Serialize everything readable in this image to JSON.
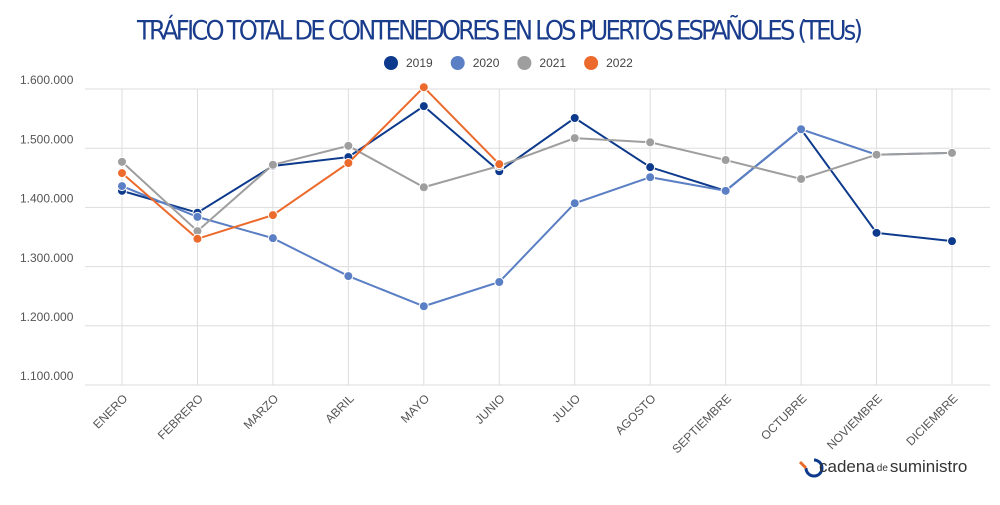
{
  "chart_data": {
    "type": "line",
    "title": "TRÁFICO TOTAL DE CONTENEDORES EN LOS PUERTOS ESPAÑOLES (TEUs)",
    "categories": [
      "ENERO",
      "FEBRERO",
      "MARZO",
      "ABRIL",
      "MAYO",
      "JUNIO",
      "JULIO",
      "AGOSTO",
      "SEPTIEMBRE",
      "OCTUBRE",
      "NOVIEMBRE",
      "DICIEMBRE"
    ],
    "series": [
      {
        "name": "2019",
        "color": "#0d3a8c",
        "values": [
          1428000,
          1391000,
          1470000,
          1485000,
          1571000,
          1461000,
          1551000,
          1468000,
          1428000,
          1532000,
          1357000,
          1343000
        ]
      },
      {
        "name": "2020",
        "color": "#5b7fc4",
        "values": [
          1436000,
          1384000,
          1348000,
          1284000,
          1233000,
          1274000,
          1407000,
          1451000,
          1428000,
          1532000,
          1489000,
          1492000
        ]
      },
      {
        "name": "2021",
        "color": "#9e9e9e",
        "values": [
          1477000,
          1360000,
          1472000,
          1504000,
          1434000,
          1470000,
          1517000,
          1510000,
          1480000,
          1448000,
          1489000,
          1492000
        ]
      },
      {
        "name": "2022",
        "color": "#ec6a2c",
        "values": [
          1458000,
          1347000,
          1387000,
          1475000,
          1603000,
          1473000,
          null,
          null,
          null,
          null,
          null,
          null
        ]
      }
    ],
    "ylim": [
      1100000,
      1600000
    ],
    "yticks": [
      {
        "value": 1100000,
        "label": "1.100.000"
      },
      {
        "value": 1200000,
        "label": "1.200.000"
      },
      {
        "value": 1300000,
        "label": "1.300.000"
      },
      {
        "value": 1400000,
        "label": "1.400.000"
      },
      {
        "value": 1500000,
        "label": "1.500.000"
      },
      {
        "value": 1600000,
        "label": "1.600.000"
      }
    ],
    "grid": true,
    "legend": "top"
  },
  "logo": {
    "parts": [
      "cadena",
      "de",
      "suministro"
    ]
  }
}
